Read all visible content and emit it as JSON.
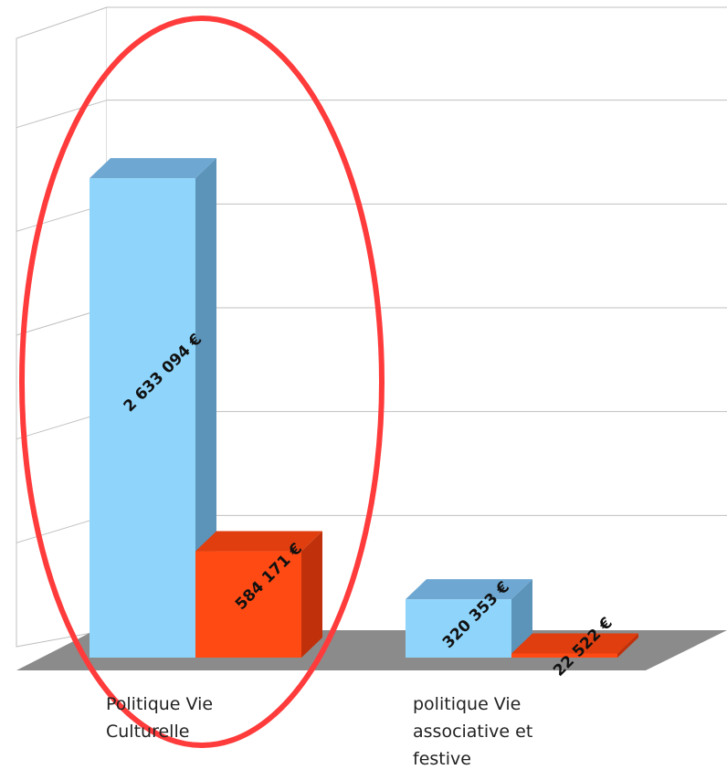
{
  "chart_data": {
    "type": "bar",
    "subtype": "3d-clustered-column",
    "categories": [
      "Politique Vie Culturelle",
      "politique Vie associative et festive"
    ],
    "category_lines": [
      [
        "Politique Vie",
        "Culturelle"
      ],
      [
        "politique Vie",
        "associative et",
        "festive"
      ]
    ],
    "series": [
      {
        "values": [
          2633094,
          320353
        ],
        "labels": [
          "2 633 094 €",
          "320 353 €"
        ]
      },
      {
        "values": [
          584171,
          22522
        ],
        "labels": [
          "584 171 €",
          "22 522 €"
        ]
      }
    ],
    "title": "",
    "xlabel": "",
    "ylabel": "",
    "ylim": [
      0,
      3000000
    ],
    "grid": true,
    "legend": "none",
    "annotation": "red ellipse around first category"
  },
  "colors": {
    "series_0_front": "#8fd5fb",
    "series_0_side": "#5b93b9",
    "series_0_top": "#6ea8d2",
    "series_1_front": "#ff4a13",
    "series_1_side": "#c0300a",
    "series_1_top": "#e03e0e",
    "floor": "#8b8b8b",
    "grid": "#bfbfbf",
    "ellipse": "#ff3b3b"
  }
}
